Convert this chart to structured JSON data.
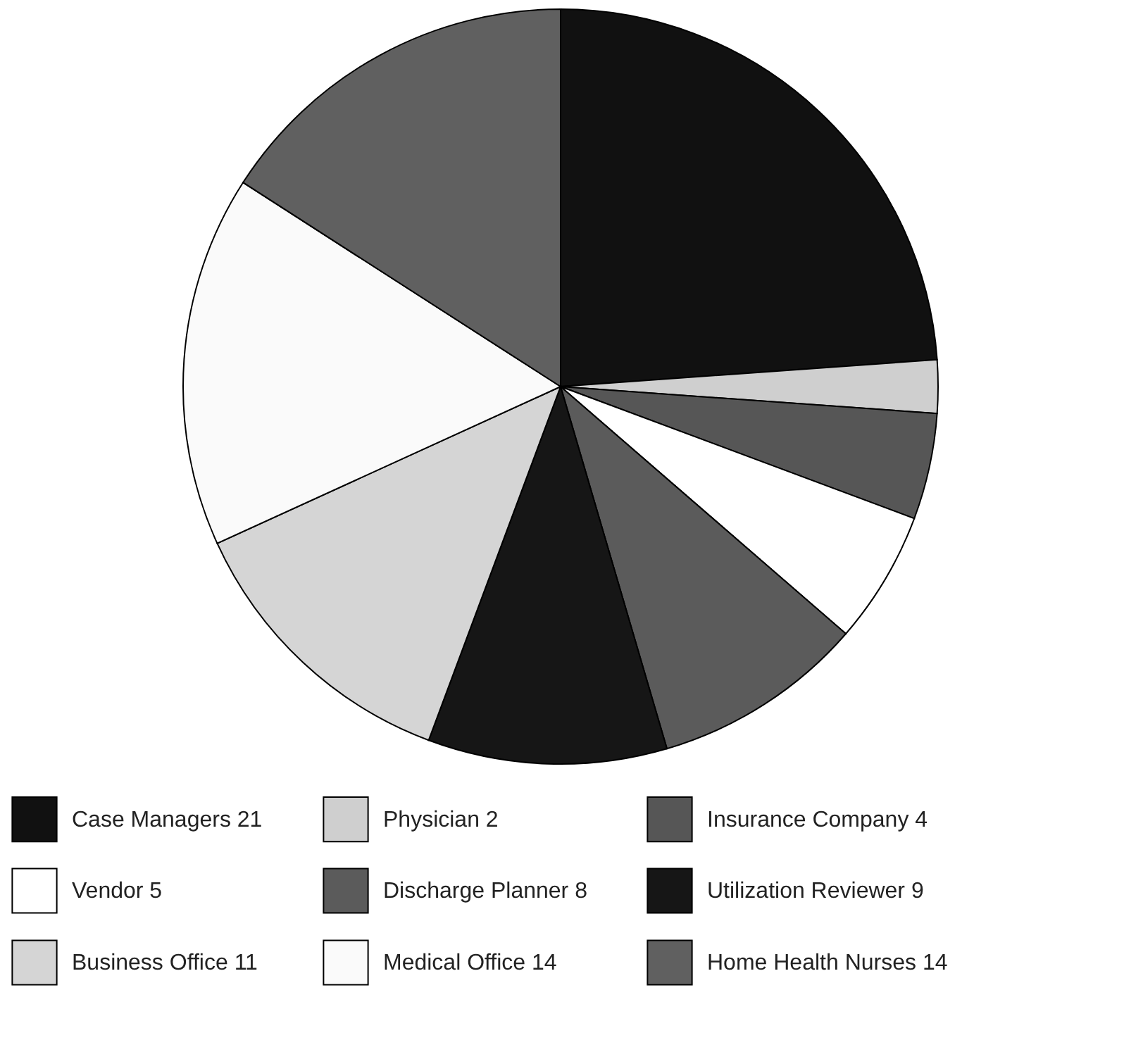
{
  "chart_data": {
    "type": "pie",
    "categories": [
      "Case Managers 21",
      "Physician 2",
      "Insurance Company 4",
      "Vendor 5",
      "Discharge Planner 8",
      "Utilization Reviewer 9",
      "Business Office 11",
      "Medical Office 14",
      "Home Health Nurses 14"
    ],
    "values": [
      21,
      2,
      4,
      5,
      8,
      9,
      11,
      14,
      14
    ],
    "colors": [
      "#111111",
      "#cfcfcf",
      "#565656",
      "#ffffff",
      "#5b5b5b",
      "#161616",
      "#d5d5d5",
      "#fafafa",
      "#606060"
    ],
    "legend": "bottom"
  }
}
